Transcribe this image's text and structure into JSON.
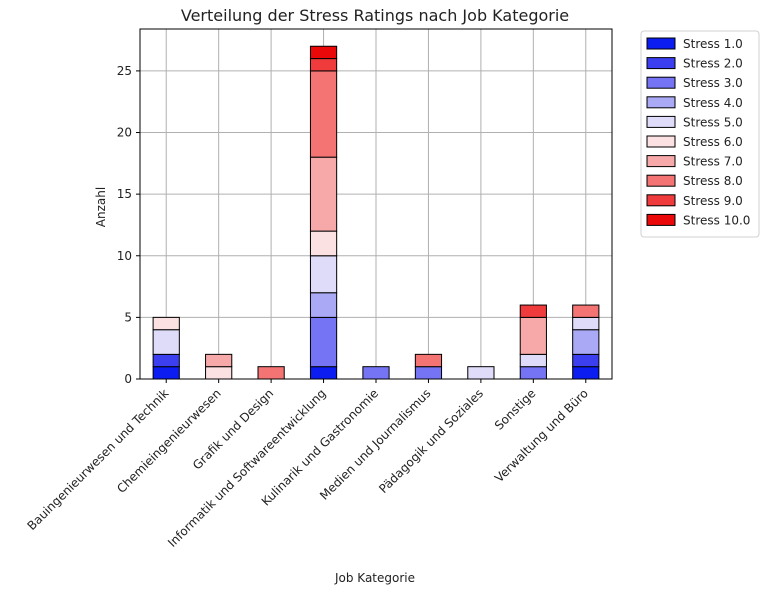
{
  "chart_data": {
    "type": "bar",
    "stacked": true,
    "title": "Verteilung der Stress Ratings nach Job Kategorie",
    "xlabel": "Job Kategorie",
    "ylabel": "Anzahl",
    "ylim": [
      0,
      28.4
    ],
    "yticks": [
      0,
      5,
      10,
      15,
      20,
      25
    ],
    "grid": true,
    "legend_position": "outside-right",
    "categories": [
      "Bauingenieurwesen und Technik",
      "Chemieingenieurwesen",
      "Grafik und Design",
      "Informatik und Softwareentwicklung",
      "Kulinarik und Gastronomie",
      "Medien und Journalismus",
      "Pädagogik und Soziales",
      "Sonstige",
      "Verwaltung und Büro"
    ],
    "series": [
      {
        "name": "Stress 1.0",
        "color": "#0b1df0",
        "values": [
          1,
          0,
          0,
          1,
          0,
          0,
          0,
          0,
          1
        ]
      },
      {
        "name": "Stress 2.0",
        "color": "#3b3ff0",
        "values": [
          1,
          0,
          0,
          0,
          0,
          0,
          0,
          0,
          1
        ]
      },
      {
        "name": "Stress 3.0",
        "color": "#7474f4",
        "values": [
          0,
          0,
          0,
          4,
          1,
          1,
          0,
          1,
          0
        ]
      },
      {
        "name": "Stress 4.0",
        "color": "#a9a9f6",
        "values": [
          0,
          0,
          0,
          2,
          0,
          0,
          0,
          0,
          2
        ]
      },
      {
        "name": "Stress 5.0",
        "color": "#dedcf9",
        "values": [
          2,
          0,
          0,
          3,
          0,
          0,
          1,
          1,
          1
        ]
      },
      {
        "name": "Stress 6.0",
        "color": "#fbe1e1",
        "values": [
          1,
          1,
          0,
          2,
          0,
          0,
          0,
          0,
          0
        ]
      },
      {
        "name": "Stress 7.0",
        "color": "#f7a9a9",
        "values": [
          0,
          1,
          0,
          6,
          0,
          0,
          0,
          3,
          0
        ]
      },
      {
        "name": "Stress 8.0",
        "color": "#f47474",
        "values": [
          0,
          0,
          1,
          7,
          0,
          1,
          0,
          0,
          1
        ]
      },
      {
        "name": "Stress 9.0",
        "color": "#ef3b3b",
        "values": [
          0,
          0,
          0,
          1,
          0,
          0,
          0,
          1,
          0
        ]
      },
      {
        "name": "Stress 10.0",
        "color": "#ea0808",
        "values": [
          0,
          0,
          0,
          1,
          0,
          0,
          0,
          0,
          0
        ]
      }
    ]
  }
}
